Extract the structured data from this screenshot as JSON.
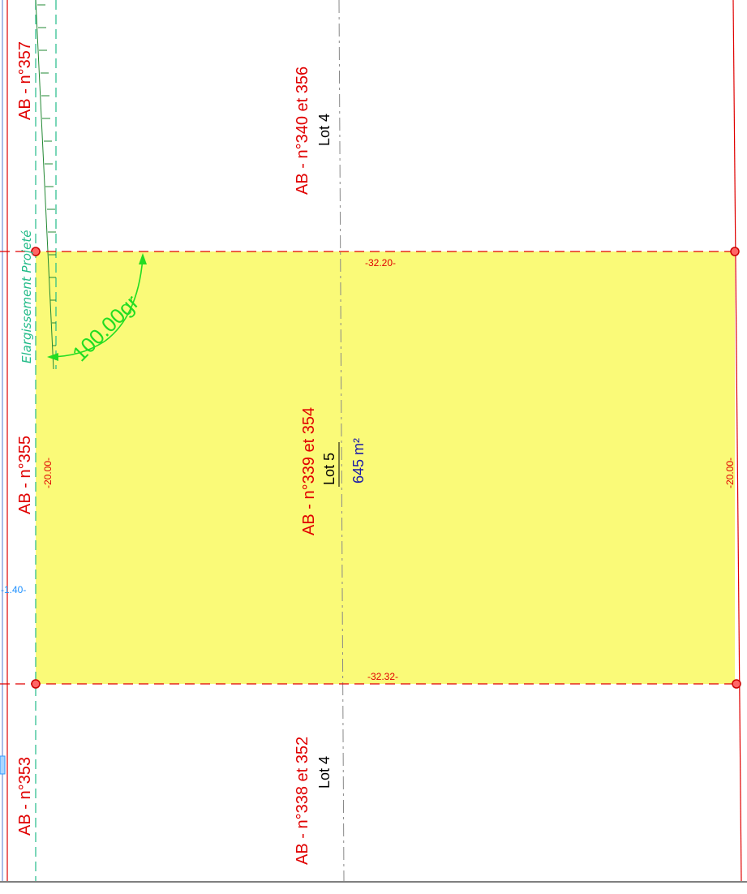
{
  "colors": {
    "parcel_fill": "#fafa78",
    "boundary_red": "#e00000",
    "label_black": "#000000",
    "area_blue": "#1a1aa8",
    "angle_green": "#22dd22",
    "elargissement_teal": "#22bb88",
    "dim_blue": "#1e90ff",
    "axis_gray": "#888888"
  },
  "labels": {
    "parcel_top": "AB - n°340 et 356",
    "lot_top": "Lot 4",
    "parcel_main": "AB - n°339 et 354",
    "lot_main": "Lot 5",
    "area_main": "645 m²",
    "parcel_bottom": "AB - n°338 et 352",
    "lot_bottom": "Lot 4",
    "left_357": "AB - n°357",
    "left_355": "AB - n°355",
    "left_353": "AB - n°353",
    "elargissement": "Elargissement Projeté",
    "angle": "100.00gr"
  },
  "dimensions": {
    "top": "-32.20-",
    "bottom": "-32.32-",
    "left": "-20.00-",
    "right": "-20.00-",
    "offset": "-1.40-"
  }
}
